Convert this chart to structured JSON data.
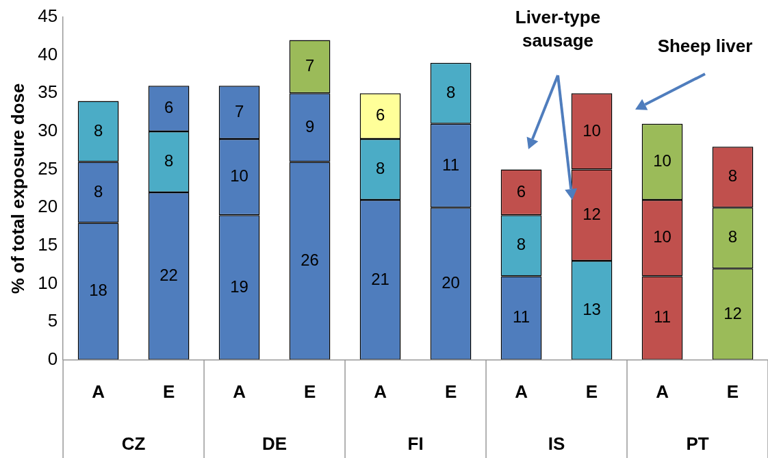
{
  "chart_data": {
    "type": "bar",
    "stacked": true,
    "ylabel": "% of total exposure dose",
    "categories": [
      "A",
      "E",
      "A",
      "E",
      "A",
      "E",
      "A",
      "E",
      "A",
      "E"
    ],
    "series": [
      {
        "values": [
          18,
          22,
          19,
          26,
          21,
          20,
          11,
          13,
          11,
          12
        ],
        "colors": [
          "#4f7dbd",
          "#4f7dbd",
          "#4f7dbd",
          "#4f7dbd",
          "#4f7dbd",
          "#4f7dbd",
          "#4f7dbd",
          "#4bacc6",
          "#c0504d",
          "#9bbb59"
        ]
      },
      {
        "values": [
          8,
          8,
          10,
          9,
          8,
          11,
          8,
          12,
          10,
          8
        ],
        "colors": [
          "#4f7dbd",
          "#4bacc6",
          "#4f7dbd",
          "#4f7dbd",
          "#4bacc6",
          "#4f7dbd",
          "#4bacc6",
          "#c0504d",
          "#c0504d",
          "#9bbb59"
        ]
      },
      {
        "values": [
          8,
          6,
          7,
          7,
          6,
          8,
          6,
          10,
          10,
          8
        ],
        "colors": [
          "#4bacc6",
          "#4f7dbd",
          "#4f7dbd",
          "#9bbb59",
          "#ffff99",
          "#4bacc6",
          "#c0504d",
          "#c0504d",
          "#9bbb59",
          "#c0504d"
        ]
      }
    ],
    "ylim": [
      0,
      45
    ],
    "yticks": [
      0,
      5,
      10,
      15,
      20,
      25,
      30,
      35,
      40,
      45
    ],
    "grid": false,
    "legend": false,
    "data_labels": true,
    "annotations": [
      "CZ",
      "DE",
      "FI",
      "IS",
      "PT",
      "Liver-type sausage",
      "Sheep liver"
    ]
  }
}
